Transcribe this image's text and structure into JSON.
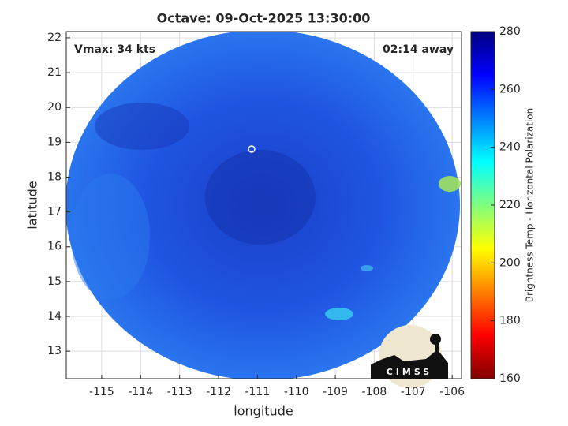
{
  "chart_data": {
    "type": "image",
    "title": "Octave: 09-Oct-2025 13:30:00",
    "xlabel": "longitude",
    "ylabel": "latitude",
    "xlim": [
      -115.91,
      -105.76
    ],
    "ylim": [
      12.21,
      22.18
    ],
    "xticks": [
      -115,
      -114,
      -113,
      -112,
      -111,
      -110,
      -109,
      -108,
      -107,
      -106
    ],
    "yticks": [
      13,
      14,
      15,
      16,
      17,
      18,
      19,
      20,
      21,
      22
    ],
    "grid": true,
    "annotations": [
      "Vmax: 34 kts",
      "02:14 away"
    ],
    "colorbar": {
      "label": "Brightness Temp - Horizontal Polarization",
      "clim": [
        160,
        280
      ],
      "ticks": [
        160,
        180,
        200,
        220,
        240,
        260,
        280
      ]
    },
    "logo": "CIMSS"
  }
}
